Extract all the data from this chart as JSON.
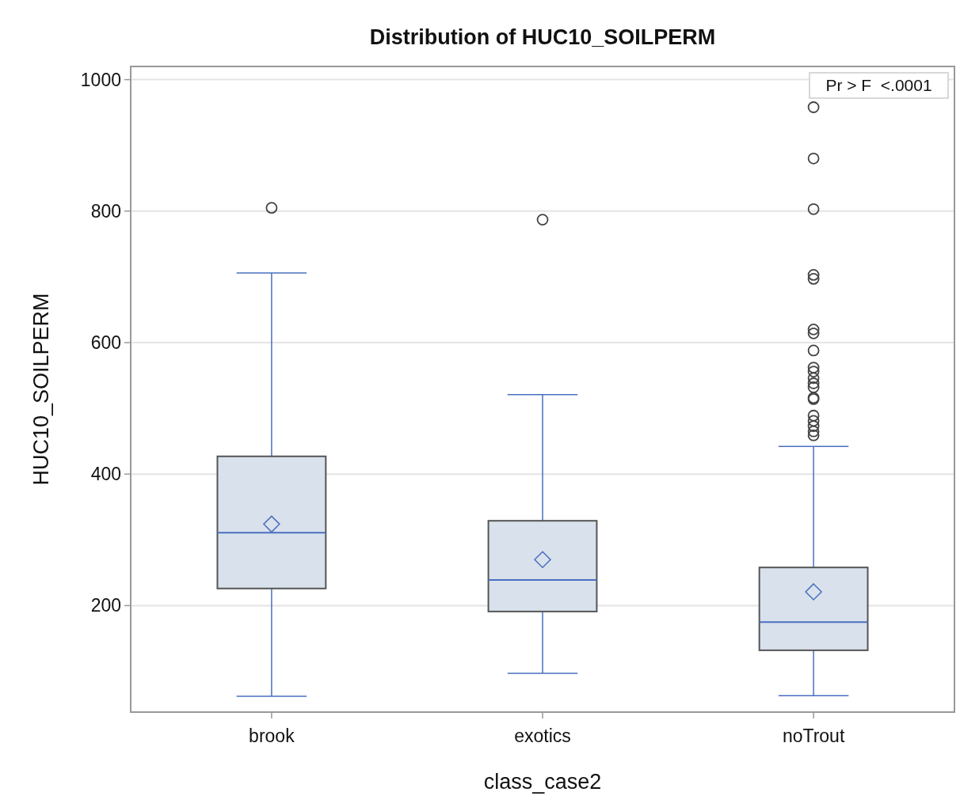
{
  "chart_data": {
    "type": "box",
    "title": "Distribution of HUC10_SOILPERM",
    "xlabel": "class_case2",
    "ylabel": "HUC10_SOILPERM",
    "categories": [
      "brook",
      "exotics",
      "noTrout"
    ],
    "boxes": [
      {
        "low": 62,
        "q1": 226,
        "median": 311,
        "q3": 427,
        "high": 706,
        "mean": 324,
        "outliers": [
          805
        ]
      },
      {
        "low": 97,
        "q1": 191,
        "median": 239,
        "q3": 329,
        "high": 521,
        "mean": 270,
        "outliers": [
          787
        ]
      },
      {
        "low": 63,
        "q1": 132,
        "median": 175,
        "q3": 258,
        "high": 442,
        "mean": 221,
        "outliers": [
          958,
          880,
          803,
          703,
          697,
          620,
          614,
          588,
          562,
          556,
          546,
          538,
          532,
          516,
          514,
          489,
          481,
          473,
          465,
          459
        ]
      }
    ],
    "color": "#d9e1ec",
    "ylim": [
      38,
      1020
    ],
    "yticks": [
      200,
      400,
      600,
      800,
      1000
    ],
    "grid": "y",
    "annotations": [
      "Pr > F  <.0001"
    ]
  }
}
